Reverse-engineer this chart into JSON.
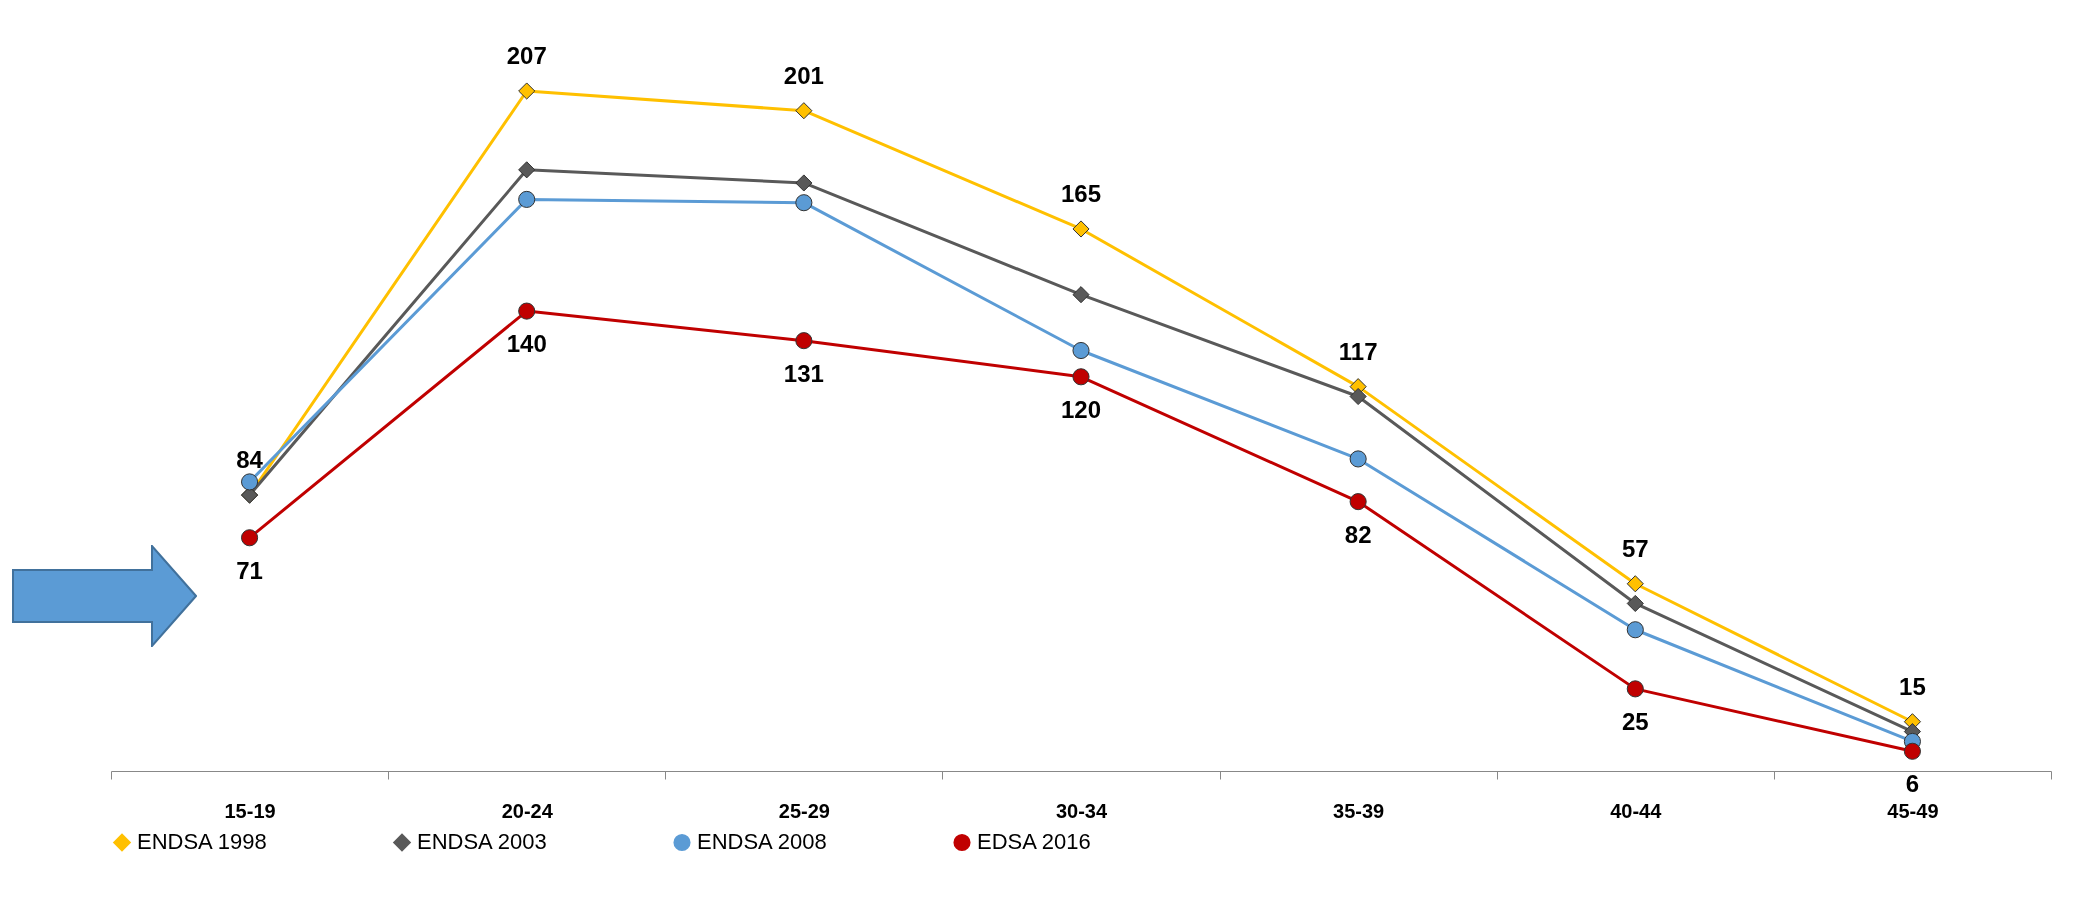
{
  "chart_data": {
    "type": "line",
    "categories": [
      "15-19",
      "20-24",
      "25-29",
      "30-34",
      "35-39",
      "40-44",
      "45-49"
    ],
    "series": [
      {
        "name": "ENDSA 1998",
        "color": "#ffc000",
        "marker": "diamond",
        "values": [
          84,
          207,
          201,
          165,
          117,
          57,
          15
        ],
        "value_labels": [
          "84",
          "207",
          "201",
          "165",
          "117",
          "57",
          "15"
        ]
      },
      {
        "name": "ENDSA 2003",
        "color": "#595959",
        "marker": "diamond",
        "values": [
          84,
          183,
          179,
          145,
          114,
          51,
          12
        ]
      },
      {
        "name": "ENDSA 2008",
        "color": "#5b9bd5",
        "marker": "circle",
        "values": [
          88,
          174,
          173,
          128,
          95,
          43,
          9
        ]
      },
      {
        "name": "EDSA 2016",
        "color": "#c00000",
        "marker": "circle",
        "values": [
          71,
          140,
          131,
          120,
          82,
          25,
          6
        ],
        "value_labels": [
          "71",
          "140",
          "131",
          "120",
          "82",
          "25",
          "6"
        ]
      }
    ],
    "tick_labels": "x",
    "grid": false,
    "legend": "bottom"
  }
}
